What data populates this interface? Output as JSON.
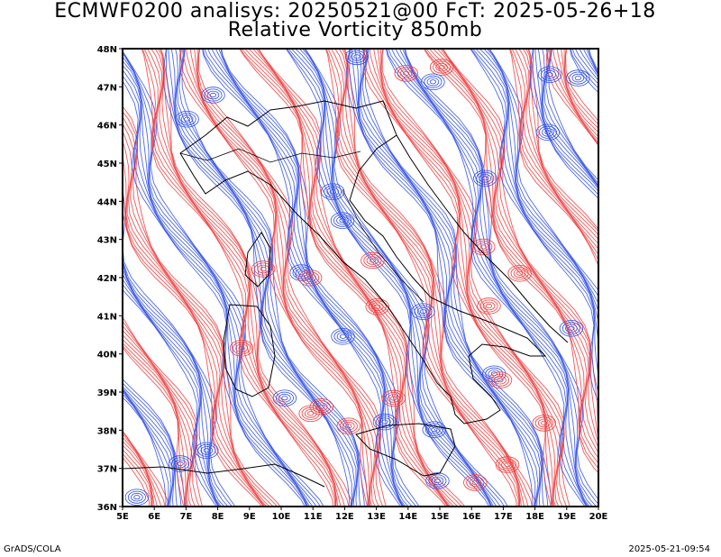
{
  "title": {
    "line1": "ECMWF0200 analisys: 20250521@00 FcT: 2025-05-26+18",
    "line2": "Relative Vorticity 850mb"
  },
  "axes": {
    "lat_labels": [
      "36N",
      "37N",
      "38N",
      "39N",
      "40N",
      "41N",
      "42N",
      "43N",
      "44N",
      "45N",
      "46N",
      "47N",
      "48N"
    ],
    "lon_labels": [
      "5E",
      "6E",
      "7E",
      "8E",
      "9E",
      "10E",
      "11E",
      "12E",
      "13E",
      "14E",
      "15E",
      "16E",
      "17E",
      "18E",
      "19E",
      "20E"
    ],
    "lat_range": [
      36,
      48
    ],
    "lon_range": [
      5,
      20
    ]
  },
  "colors": {
    "positive_vorticity": "#f03a3a",
    "negative_vorticity": "#2f4ee6",
    "coastline": "#000000",
    "background": "#ffffff"
  },
  "footer": {
    "left": "GrADS/COLA",
    "right": "2025-05-21-09:54"
  }
}
